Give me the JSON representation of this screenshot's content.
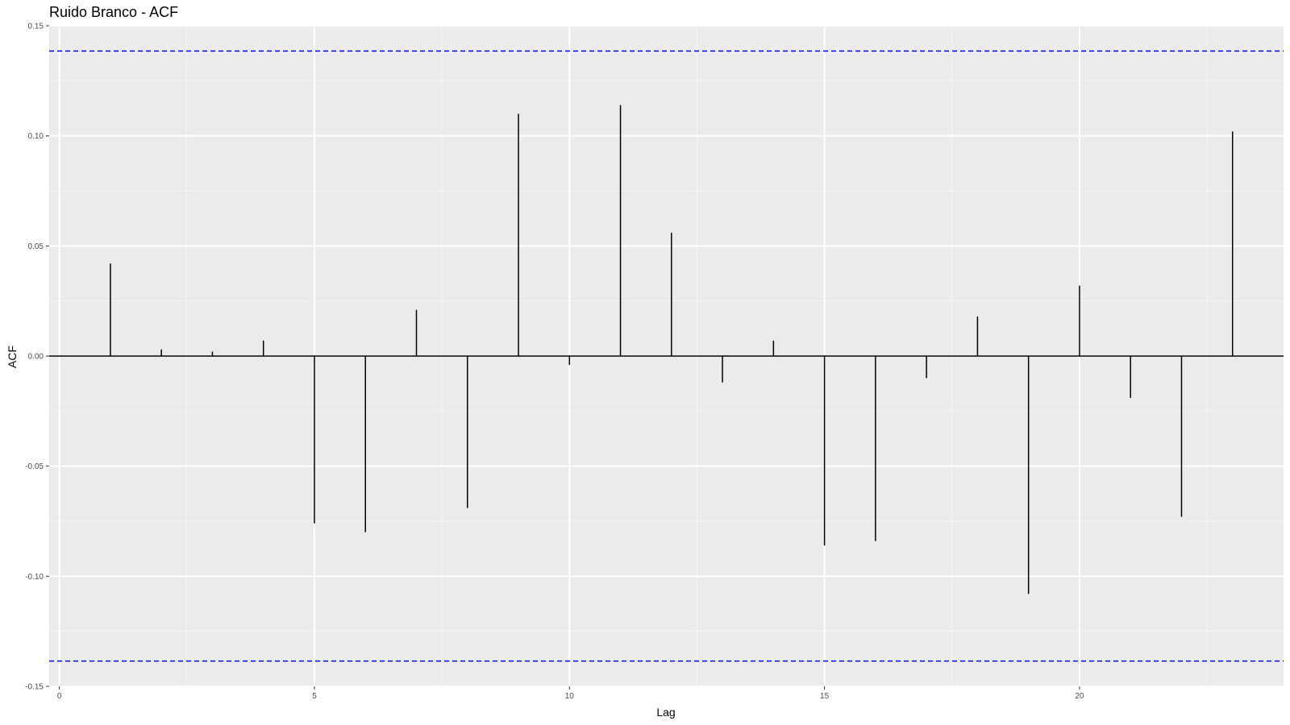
{
  "chart_data": {
    "type": "bar",
    "title": "Ruido Branco - ACF",
    "xlabel": "Lag",
    "ylabel": "ACF",
    "xlim": [
      -0.2,
      24
    ],
    "ylim": [
      -0.15,
      0.15
    ],
    "x_ticks": [
      0,
      5,
      10,
      15,
      20
    ],
    "x_tick_labels": [
      "0",
      "5",
      "10",
      "15",
      "20"
    ],
    "y_ticks": [
      -0.15,
      -0.1,
      -0.05,
      0,
      0.05,
      0.1,
      0.15
    ],
    "y_tick_labels": [
      "-0.15",
      "-0.10",
      "-0.05",
      "0.00",
      "0.05",
      "0.10",
      "0.15"
    ],
    "x_minor_ticks": [
      2.5,
      7.5,
      12.5,
      17.5,
      22.5
    ],
    "y_minor_ticks": [
      -0.125,
      -0.075,
      -0.025,
      0.025,
      0.075,
      0.125
    ],
    "lags": [
      1,
      2,
      3,
      4,
      5,
      6,
      7,
      8,
      9,
      10,
      11,
      12,
      13,
      14,
      15,
      16,
      17,
      18,
      19,
      20,
      21,
      22,
      23
    ],
    "values": [
      0.042,
      0.003,
      0.002,
      0.007,
      -0.076,
      -0.08,
      0.021,
      -0.069,
      0.11,
      -0.004,
      0.114,
      0.056,
      -0.012,
      0.007,
      -0.086,
      -0.084,
      -0.01,
      0.018,
      -0.108,
      0.032,
      -0.019,
      -0.073,
      0.102
    ],
    "confidence_bounds": [
      0.1385,
      -0.1385
    ],
    "colors": {
      "panel_background": "#ebebeb",
      "grid_major": "#ffffff",
      "grid_minor": "#f5f5f5",
      "bars": "#000000",
      "zero_line": "#000000",
      "confidence_line": "#0000ff"
    }
  }
}
